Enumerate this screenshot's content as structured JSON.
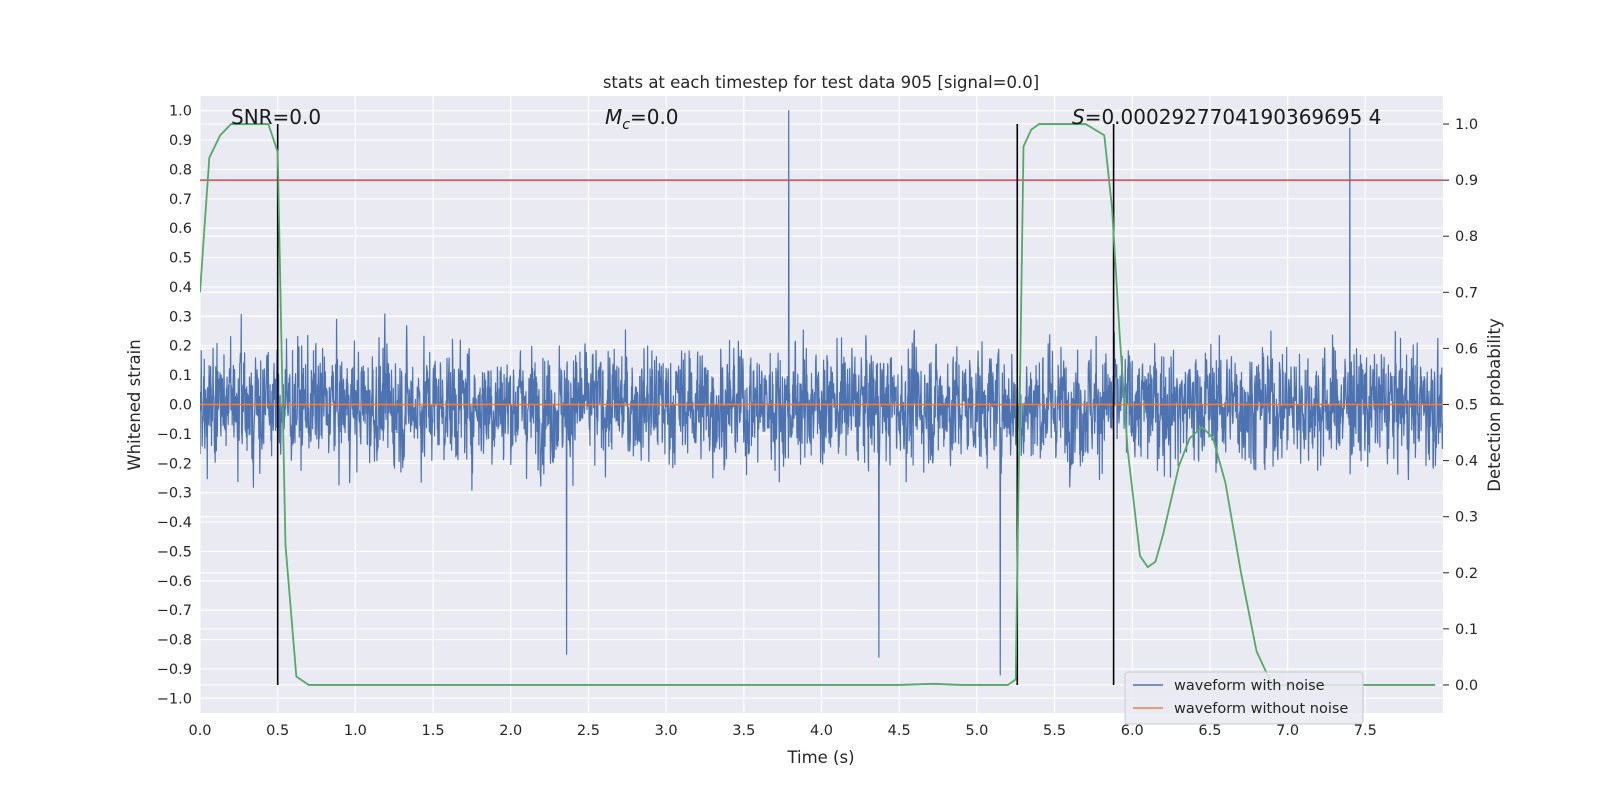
{
  "chart_data": {
    "type": "line",
    "title": "stats at each timestep for test data 905 [signal=0.0]",
    "xlabel": "Time (s)",
    "ylabel": "Whitened strain",
    "y2label": "Detection probability",
    "xlim": [
      0.0,
      8.0
    ],
    "ylim": [
      -1.05,
      1.05
    ],
    "y2lim": [
      -0.05,
      1.05
    ],
    "x_ticks": [
      0.0,
      0.5,
      1.0,
      1.5,
      2.0,
      2.5,
      3.0,
      3.5,
      4.0,
      4.5,
      5.0,
      5.5,
      6.0,
      6.5,
      7.0,
      7.5
    ],
    "x_tick_labels": [
      "0.0",
      "0.5",
      "1.0",
      "1.5",
      "2.0",
      "2.5",
      "3.0",
      "3.5",
      "4.0",
      "4.5",
      "5.0",
      "5.5",
      "6.0",
      "6.5",
      "7.0",
      "7.5"
    ],
    "y_ticks": [
      1.0,
      0.9,
      0.8,
      0.7,
      0.6,
      0.5,
      0.4,
      0.3,
      0.2,
      0.1,
      0.0,
      -0.1,
      -0.2,
      -0.3,
      -0.4,
      -0.5,
      -0.6,
      -0.7,
      -0.8,
      -0.9,
      -1.0
    ],
    "y_tick_labels": [
      "1.0",
      "0.9",
      "0.8",
      "0.7",
      "0.6",
      "0.5",
      "0.4",
      "0.3",
      "0.2",
      "0.1",
      "0.0",
      "−0.1",
      "−0.2",
      "−0.3",
      "−0.4",
      "−0.5",
      "−0.6",
      "−0.7",
      "−0.8",
      "−0.9",
      "−1.0"
    ],
    "y2_ticks": [
      1.0,
      0.9,
      0.8,
      0.7,
      0.6,
      0.5,
      0.4,
      0.3,
      0.2,
      0.1,
      0.0
    ],
    "y2_tick_labels": [
      "1.0",
      "0.9",
      "0.8",
      "0.7",
      "0.6",
      "0.5",
      "0.4",
      "0.3",
      "0.2",
      "0.1",
      "0.0"
    ],
    "annotations": {
      "snr": "SNR=0.0",
      "mc_symbol": "M",
      "mc_sub": "c",
      "mc_value": "=0.0",
      "s_symbol": "S",
      "s_value": "=0.0002927704190369695 4"
    },
    "series": [
      {
        "name": "waveform with noise",
        "color": "#4c72b0",
        "axis": "left",
        "sample_rate_hz": 512,
        "amplitude_range": [
          -0.92,
          1.0
        ],
        "notable_peaks": [
          {
            "x": 3.79,
            "y": 1.0
          },
          {
            "x": 7.4,
            "y": 0.94
          },
          {
            "x": 5.15,
            "y": -0.92
          },
          {
            "x": 2.36,
            "y": -0.85
          },
          {
            "x": 4.37,
            "y": -0.86
          }
        ]
      },
      {
        "name": "waveform without noise",
        "color": "#dd8452",
        "axis": "left",
        "x": [
          0.0,
          8.0
        ],
        "y": [
          0.0,
          0.0
        ]
      },
      {
        "name": "detection probability",
        "color": "#55a868",
        "axis": "right",
        "x": [
          0.0,
          0.06,
          0.13,
          0.2,
          0.3,
          0.44,
          0.5,
          0.55,
          0.62,
          0.7,
          1.0,
          2.0,
          3.0,
          4.0,
          4.5,
          4.72,
          4.9,
          5.1,
          5.2,
          5.25,
          5.3,
          5.35,
          5.4,
          5.5,
          5.6,
          5.7,
          5.82,
          5.87,
          5.92,
          5.97,
          6.05,
          6.1,
          6.15,
          6.2,
          6.3,
          6.37,
          6.45,
          6.52,
          6.6,
          6.7,
          6.8,
          6.9,
          7.0,
          7.5,
          7.95
        ],
        "y": [
          0.7,
          0.94,
          0.98,
          1.0,
          1.0,
          1.0,
          0.95,
          0.25,
          0.015,
          0.0,
          0.0,
          0.0,
          0.0,
          0.0,
          0.0,
          0.002,
          0.0,
          0.0,
          0.0,
          0.01,
          0.96,
          0.99,
          1.0,
          1.0,
          1.0,
          1.0,
          0.98,
          0.85,
          0.62,
          0.42,
          0.23,
          0.21,
          0.22,
          0.27,
          0.39,
          0.44,
          0.46,
          0.44,
          0.36,
          0.2,
          0.06,
          0.0,
          0.0,
          0.0,
          0.0
        ]
      }
    ],
    "reference_lines": {
      "threshold_right": 0.9,
      "threshold_color": "#c44e52",
      "vertical_markers_x": [
        0.5,
        5.26,
        5.88
      ],
      "vertical_marker_range_right": [
        0.0,
        1.0
      ],
      "vertical_marker_color": "#000000"
    },
    "legend": {
      "position": "lower-right",
      "entries": [
        {
          "label": "waveform with noise",
          "color": "#4c72b0"
        },
        {
          "label": "waveform without noise",
          "color": "#dd8452"
        }
      ]
    },
    "style": {
      "axes_background": "#eaeaf2",
      "grid_color": "#ffffff",
      "grid": true
    }
  }
}
